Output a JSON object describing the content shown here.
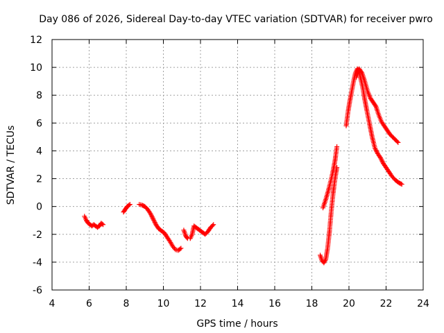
{
  "chart_data": {
    "type": "scatter",
    "title": "Day 086 of 2026, Sidereal Day-to-day VTEC variation (SDTVAR) for receiver pwro",
    "xlabel": "GPS time / hours",
    "ylabel": "SDTVAR / TECUs",
    "xlim": [
      4,
      24
    ],
    "ylim": [
      -6,
      12
    ],
    "xticks": [
      4,
      6,
      8,
      10,
      12,
      14,
      16,
      18,
      20,
      22,
      24
    ],
    "yticks": [
      -6,
      -4,
      -2,
      0,
      2,
      4,
      6,
      8,
      10,
      12
    ],
    "grid": true,
    "marker": "+",
    "colors": {
      "series": "#ff0000",
      "axis": "#000000",
      "grid": "#a0a0a0"
    },
    "series": [
      {
        "name": "SDTVAR",
        "segments": [
          [
            [
              5.75,
              -0.7
            ],
            [
              5.85,
              -1.0
            ],
            [
              5.95,
              -1.2
            ],
            [
              6.05,
              -1.3
            ],
            [
              6.15,
              -1.4
            ],
            [
              6.25,
              -1.3
            ],
            [
              6.35,
              -1.4
            ],
            [
              6.45,
              -1.5
            ],
            [
              6.55,
              -1.4
            ],
            [
              6.65,
              -1.2
            ],
            [
              6.75,
              -1.3
            ]
          ],
          [
            [
              7.85,
              -0.4
            ],
            [
              7.95,
              -0.2
            ],
            [
              8.05,
              0.0
            ],
            [
              8.15,
              0.1
            ],
            [
              8.2,
              0.15
            ]
          ],
          [
            [
              8.7,
              0.15
            ],
            [
              8.85,
              0.1
            ],
            [
              9.0,
              0.0
            ],
            [
              9.15,
              -0.2
            ],
            [
              9.3,
              -0.5
            ],
            [
              9.45,
              -0.9
            ],
            [
              9.6,
              -1.3
            ],
            [
              9.75,
              -1.6
            ],
            [
              9.9,
              -1.75
            ],
            [
              10.05,
              -1.9
            ],
            [
              10.2,
              -2.2
            ],
            [
              10.35,
              -2.5
            ],
            [
              10.5,
              -2.85
            ],
            [
              10.65,
              -3.1
            ],
            [
              10.8,
              -3.15
            ],
            [
              10.95,
              -3.0
            ]
          ],
          [
            [
              11.1,
              -1.7
            ],
            [
              11.2,
              -2.1
            ],
            [
              11.3,
              -2.3
            ]
          ],
          [
            [
              11.45,
              -2.3
            ],
            [
              11.55,
              -2.0
            ],
            [
              11.65,
              -1.4
            ],
            [
              11.8,
              -1.55
            ],
            [
              11.95,
              -1.7
            ],
            [
              12.1,
              -1.85
            ],
            [
              12.25,
              -2.0
            ],
            [
              12.4,
              -1.8
            ],
            [
              12.55,
              -1.5
            ],
            [
              12.7,
              -1.3
            ]
          ],
          [
            [
              18.45,
              -3.5
            ],
            [
              18.55,
              -3.9
            ],
            [
              18.65,
              -4.05
            ],
            [
              18.75,
              -3.8
            ],
            [
              18.85,
              -3.0
            ],
            [
              18.95,
              -1.8
            ],
            [
              19.05,
              -0.3
            ],
            [
              19.15,
              1.0
            ],
            [
              19.25,
              2.0
            ],
            [
              19.35,
              2.8
            ]
          ],
          [
            [
              18.6,
              -0.1
            ],
            [
              18.75,
              0.5
            ],
            [
              18.9,
              1.2
            ],
            [
              19.05,
              2.0
            ],
            [
              19.15,
              2.6
            ],
            [
              19.25,
              3.3
            ],
            [
              19.35,
              4.3
            ]
          ],
          [
            [
              19.85,
              5.8
            ],
            [
              19.95,
              6.8
            ],
            [
              20.05,
              7.6
            ],
            [
              20.15,
              8.3
            ],
            [
              20.25,
              9.0
            ],
            [
              20.35,
              9.6
            ],
            [
              20.45,
              9.9
            ],
            [
              20.55,
              9.7
            ],
            [
              20.65,
              9.1
            ],
            [
              20.75,
              8.5
            ],
            [
              20.85,
              7.7
            ],
            [
              20.95,
              7.0
            ],
            [
              21.1,
              6.0
            ],
            [
              21.25,
              5.0
            ],
            [
              21.4,
              4.2
            ],
            [
              21.55,
              3.8
            ],
            [
              21.7,
              3.5
            ],
            [
              21.85,
              3.1
            ],
            [
              22.0,
              2.8
            ],
            [
              22.15,
              2.5
            ],
            [
              22.3,
              2.2
            ],
            [
              22.5,
              1.9
            ],
            [
              22.7,
              1.7
            ],
            [
              22.85,
              1.6
            ]
          ],
          [
            [
              20.4,
              9.3
            ],
            [
              20.55,
              9.9
            ],
            [
              20.7,
              9.6
            ],
            [
              20.85,
              9.0
            ],
            [
              21.0,
              8.3
            ],
            [
              21.15,
              7.8
            ],
            [
              21.3,
              7.5
            ],
            [
              21.45,
              7.2
            ],
            [
              21.6,
              6.6
            ],
            [
              21.75,
              6.1
            ],
            [
              21.9,
              5.8
            ],
            [
              22.05,
              5.5
            ],
            [
              22.2,
              5.2
            ],
            [
              22.35,
              5.0
            ],
            [
              22.5,
              4.8
            ],
            [
              22.65,
              4.6
            ]
          ]
        ]
      }
    ]
  }
}
